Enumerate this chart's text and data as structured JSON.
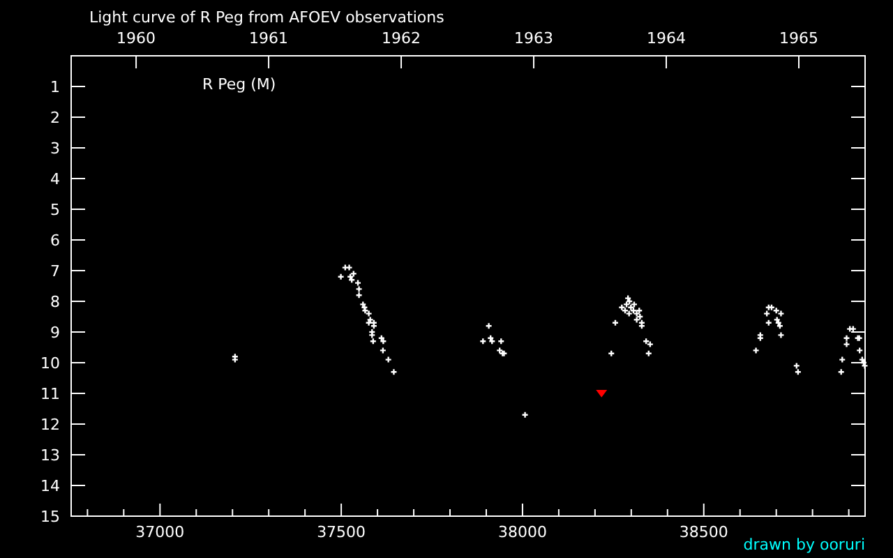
{
  "chart_data": {
    "type": "scatter",
    "title": "Light curve of R Peg from AFOEV observations",
    "annotations": [
      "drawn by ooruri"
    ],
    "xlim": [
      36755,
      38945
    ],
    "ylim": [
      15,
      0
    ],
    "xticks": [
      {
        "value": 36800,
        "label": null
      },
      {
        "value": 36900,
        "label": null
      },
      37000,
      {
        "value": 37100,
        "label": null
      },
      {
        "value": 37200,
        "label": null
      },
      {
        "value": 37300,
        "label": null
      },
      {
        "value": 37400,
        "label": null
      },
      37500,
      {
        "value": 37600,
        "label": null
      },
      {
        "value": 37700,
        "label": null
      },
      {
        "value": 37800,
        "label": null
      },
      {
        "value": 37900,
        "label": null
      },
      38000,
      {
        "value": 38100,
        "label": null
      },
      {
        "value": 38200,
        "label": null
      },
      {
        "value": 38300,
        "label": null
      },
      {
        "value": 38400,
        "label": null
      },
      38500,
      {
        "value": 38600,
        "label": null
      },
      {
        "value": 38700,
        "label": null
      },
      {
        "value": 38800,
        "label": null
      },
      {
        "value": 38900,
        "label": null
      }
    ],
    "yticks": [
      1,
      2,
      3,
      4,
      5,
      6,
      7,
      8,
      9,
      10,
      11,
      12,
      13,
      14,
      15
    ],
    "x2lim": [
      1959.51,
      1965.5
    ],
    "x2ticks": [
      1960,
      1961,
      1962,
      1963,
      1964,
      1965
    ],
    "grid": false,
    "legend": "top left",
    "marker": "cross",
    "series": [
      {
        "name": "R Peg (M)",
        "color": "#ffffff",
        "x": [
          37207,
          37207,
          37511,
          37522,
          37499,
          37525,
          37534,
          37529,
          37546,
          37549,
          37549,
          37560,
          37564,
          37566,
          37576,
          37580,
          37590,
          37576,
          37590,
          37585,
          37585,
          37611,
          37588,
          37616,
          37615,
          37630,
          37645,
          37907,
          37891,
          37912,
          37916,
          37941,
          37937,
          37949,
          37945,
          38007,
          38291,
          38295,
          38274,
          38287,
          38299,
          38308,
          38294,
          38306,
          38322,
          38315,
          38324,
          38315,
          38329,
          38329,
          38283,
          38256,
          38341,
          38352,
          38348,
          38245,
          38679,
          38687,
          38674,
          38700,
          38713,
          38679,
          38702,
          38706,
          38710,
          38656,
          38713,
          38656,
          38644,
          38756,
          38760,
          38903,
          38912,
          38894,
          38925,
          38929,
          38894,
          38930,
          38882,
          38937,
          38941,
          38944,
          38879
        ],
        "values": [
          9.8,
          9.9,
          6.9,
          6.9,
          7.2,
          7.2,
          7.1,
          7.3,
          7.4,
          7.6,
          7.8,
          8.1,
          8.2,
          8.3,
          8.4,
          8.6,
          8.7,
          8.7,
          8.8,
          9.0,
          9.1,
          9.2,
          9.3,
          9.3,
          9.6,
          9.9,
          10.3,
          8.8,
          9.3,
          9.2,
          9.3,
          9.3,
          9.6,
          9.7,
          9.7,
          11.7,
          7.9,
          8.0,
          8.2,
          8.1,
          8.2,
          8.1,
          8.4,
          8.3,
          8.3,
          8.4,
          8.5,
          8.6,
          8.7,
          8.8,
          8.3,
          8.7,
          9.3,
          9.4,
          9.7,
          9.7,
          8.2,
          8.2,
          8.4,
          8.3,
          8.4,
          8.7,
          8.6,
          8.7,
          8.8,
          9.1,
          9.1,
          9.2,
          9.6,
          10.1,
          10.3,
          8.9,
          8.9,
          9.2,
          9.2,
          9.2,
          9.4,
          9.6,
          9.9,
          9.9,
          10.0,
          10.1,
          10.3
        ]
      },
      {
        "color": "#ff0000",
        "marker": "triangle",
        "x": [
          38218
        ],
        "values": [
          11.0
        ]
      }
    ]
  }
}
